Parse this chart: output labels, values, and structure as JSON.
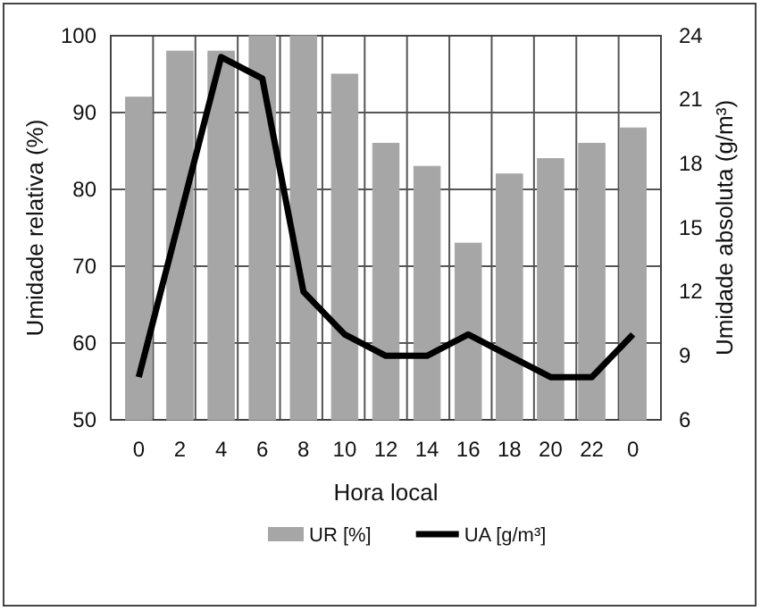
{
  "chart_data": {
    "type": "bar",
    "xlabel": "Hora local",
    "ylabel": "Umidade relativa (%)",
    "y2label": "Umidade absoluta (g/m³)",
    "categories": [
      "0",
      "2",
      "4",
      "6",
      "8",
      "10",
      "12",
      "14",
      "16",
      "18",
      "20",
      "22",
      "0"
    ],
    "series": [
      {
        "name": "UR [%]",
        "color": "#a6a6a6",
        "values": [
          92,
          98,
          98,
          100,
          100,
          95,
          86,
          83,
          73,
          82,
          84,
          86,
          88
        ]
      },
      {
        "name": "UA [g/m³]",
        "type": "line",
        "axis": "y2",
        "color": "#000000",
        "values": [
          8,
          15.5,
          23,
          22,
          12,
          10,
          9,
          9,
          10,
          9,
          8,
          8,
          10
        ]
      }
    ],
    "ylim": [
      50,
      100
    ],
    "yticks": [
      50,
      60,
      70,
      80,
      90,
      100
    ],
    "y2lim": [
      6,
      24
    ],
    "y2ticks": [
      6,
      9,
      12,
      15,
      18,
      21,
      24
    ],
    "grid": true,
    "legend": "bottom",
    "marker": "none",
    "line_style": "solid"
  }
}
